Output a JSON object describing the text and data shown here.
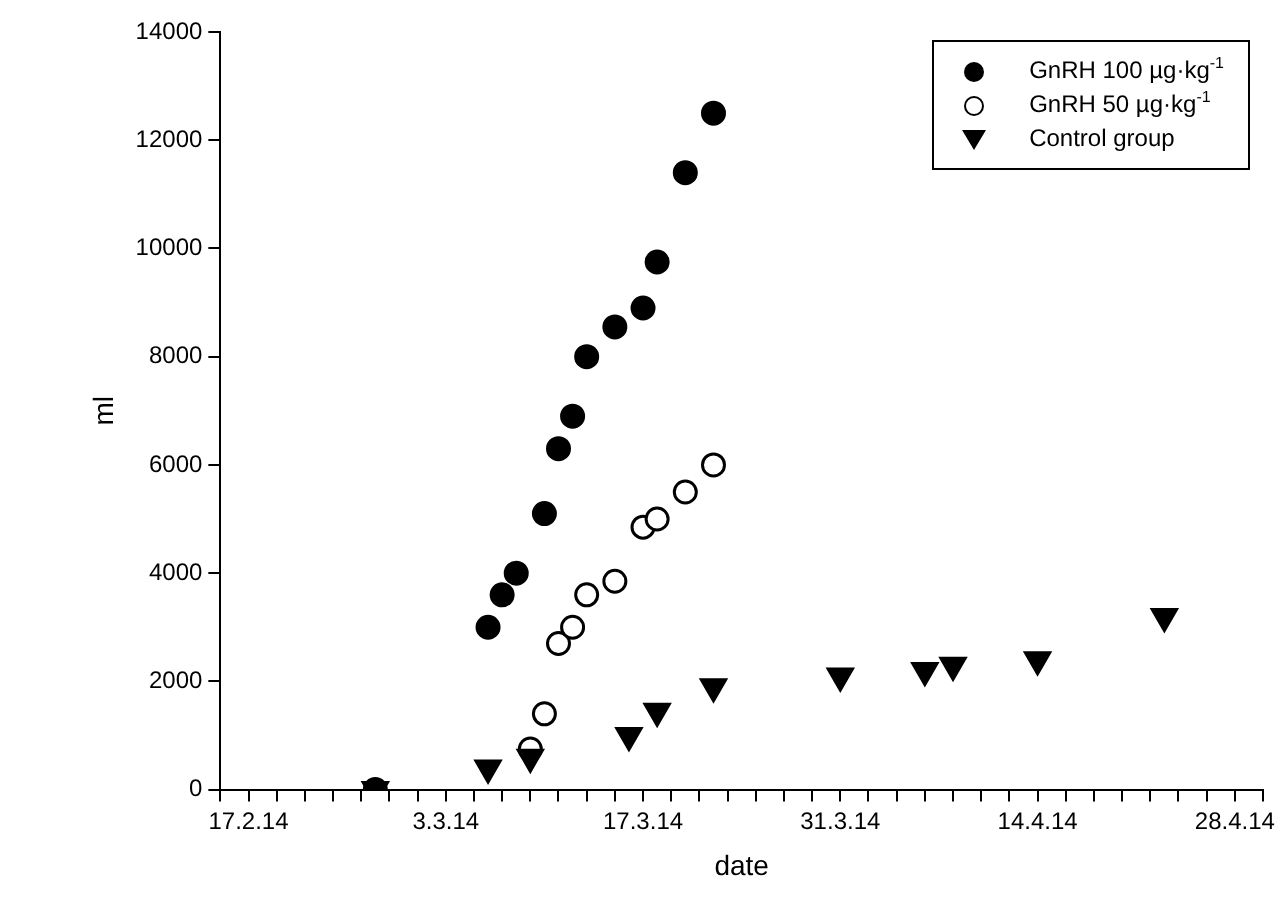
{
  "chart_data": {
    "type": "scatter",
    "xlabel": "date",
    "ylabel": "ml",
    "xlim": [
      "--02-15",
      "--04-30"
    ],
    "xticks": [
      {
        "value": "--02-15",
        "label": null
      },
      {
        "value": "--02-17",
        "label": "17.2.14"
      },
      {
        "value": "--02-19",
        "label": null
      },
      {
        "value": "--02-21",
        "label": null
      },
      {
        "value": "--02-23",
        "label": null
      },
      {
        "value": "--02-25",
        "label": null
      },
      {
        "value": "--02-27",
        "label": null
      },
      {
        "value": "--03-01",
        "label": null
      },
      {
        "value": "--03-03",
        "label": "3.3.14"
      },
      {
        "value": "--03-05",
        "label": null
      },
      {
        "value": "--03-07",
        "label": null
      },
      {
        "value": "--03-09",
        "label": null
      },
      {
        "value": "--03-11",
        "label": null
      },
      {
        "value": "--03-13",
        "label": null
      },
      {
        "value": "--03-15",
        "label": null
      },
      {
        "value": "--03-17",
        "label": "17.3.14"
      },
      {
        "value": "--03-19",
        "label": null
      },
      {
        "value": "--03-21",
        "label": null
      },
      {
        "value": "--03-23",
        "label": null
      },
      {
        "value": "--03-25",
        "label": null
      },
      {
        "value": "--03-27",
        "label": null
      },
      {
        "value": "--03-29",
        "label": null
      },
      {
        "value": "--03-31",
        "label": "31.3.14"
      },
      {
        "value": "--04-02",
        "label": null
      },
      {
        "value": "--04-04",
        "label": null
      },
      {
        "value": "--04-06",
        "label": null
      },
      {
        "value": "--04-08",
        "label": null
      },
      {
        "value": "--04-10",
        "label": null
      },
      {
        "value": "--04-12",
        "label": null
      },
      {
        "value": "--04-14",
        "label": "14.4.14"
      },
      {
        "value": "--04-16",
        "label": null
      },
      {
        "value": "--04-18",
        "label": null
      },
      {
        "value": "--04-20",
        "label": null
      },
      {
        "value": "--04-22",
        "label": null
      },
      {
        "value": "--04-24",
        "label": null
      },
      {
        "value": "--04-26",
        "label": null
      },
      {
        "value": "--04-28",
        "label": "28.4.14"
      },
      {
        "value": "--04-30",
        "label": null
      }
    ],
    "ylim": [
      0,
      14000
    ],
    "yticks": [
      0,
      2000,
      4000,
      6000,
      8000,
      10000,
      12000,
      14000
    ],
    "grid": false,
    "legend": "top right",
    "series": [
      {
        "name": "GnRH 100 µg·kg$^{-1}$",
        "color": "#000000",
        "marker": "circle",
        "x": [
          "--02-26",
          "--03-06",
          "--03-07",
          "--03-08",
          "--03-10",
          "--03-11",
          "--03-12",
          "--03-13",
          "--03-15",
          "--03-17",
          "--03-18",
          "--03-20",
          "--03-22"
        ],
        "values": [
          0,
          3000,
          3600,
          4000,
          5100,
          6300,
          6900,
          8000,
          8550,
          8900,
          9750,
          11400,
          12500
        ]
      },
      {
        "name": "GnRH 50 µg·kg$^{-1}$",
        "color": "#ffffff",
        "marker": "circle",
        "x": [
          "--03-09",
          "--03-10",
          "--03-11",
          "--03-12",
          "--03-13",
          "--03-15",
          "--03-17",
          "--03-18",
          "--03-20",
          "--03-22"
        ],
        "values": [
          750,
          1400,
          2700,
          3000,
          3600,
          3850,
          4850,
          5000,
          5500,
          6000
        ]
      },
      {
        "name": "Control group",
        "color": "#000000",
        "marker": "triangle-down",
        "x": [
          "--02-26",
          "--03-06",
          "--03-09",
          "--03-16",
          "--03-18",
          "--03-22",
          "--03-31",
          "--04-06",
          "--04-08",
          "--04-14",
          "--04-23"
        ],
        "values": [
          0,
          400,
          600,
          1000,
          1450,
          1900,
          2100,
          2200,
          2300,
          2400,
          3200
        ]
      }
    ]
  }
}
